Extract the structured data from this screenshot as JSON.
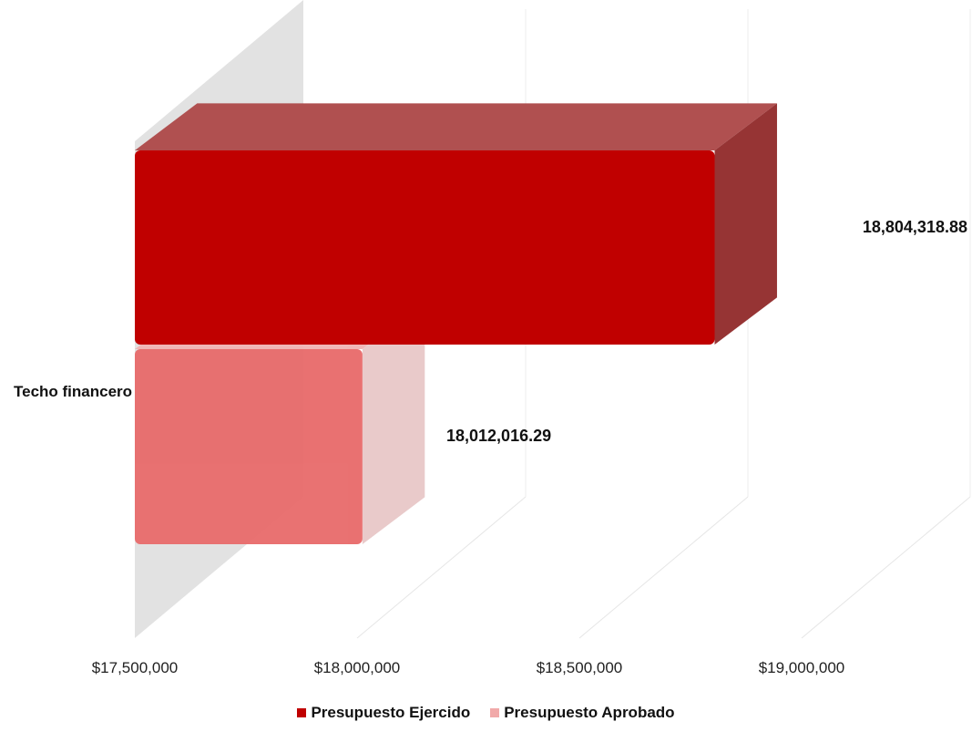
{
  "chart_data": {
    "type": "bar",
    "orientation": "horizontal",
    "three_d": true,
    "categories": [
      "Techo financero"
    ],
    "series": [
      {
        "name": "Presupuesto Ejercido",
        "values": [
          18804318.88
        ],
        "color": "#c00000",
        "label": "18,804,318.88"
      },
      {
        "name": "Presupuesto Aprobado",
        "values": [
          18012016.29
        ],
        "color": "#e86a6a",
        "label": "18,012,016.29"
      }
    ],
    "xlim": [
      17500000,
      19000000
    ],
    "x_ticks": [
      17500000,
      18000000,
      18500000,
      19000000
    ],
    "x_tick_labels": [
      "$17,500,000",
      "$18,000,000",
      "$18,500,000",
      "$19,000,000"
    ],
    "grid": true,
    "legend_position": "bottom"
  }
}
